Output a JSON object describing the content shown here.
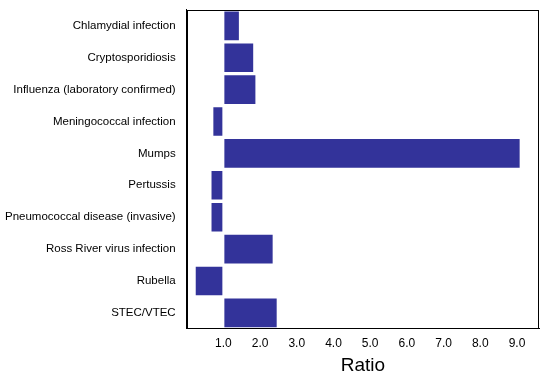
{
  "chart_data": {
    "type": "bar",
    "orientation": "horizontal",
    "x_label": "Ratio",
    "categories": [
      "Chlamydial infection",
      "Cryptosporidiosis",
      "Influenza (laboratory confirmed)",
      "Meningococcal infection",
      "Mumps",
      "Pertussis",
      "Pneumococcal disease (invasive)",
      "Ross River virus infection",
      "Rubella",
      "STEC/VTEC"
    ],
    "values": [
      1.45,
      1.84,
      1.9,
      0.7,
      9.1,
      0.65,
      0.65,
      2.37,
      0.22,
      2.48
    ],
    "baseline": 1,
    "color": "#33339a",
    "xlim": [
      0,
      9.6
    ],
    "xticks": [
      {
        "value": 1,
        "label": "1.0"
      },
      {
        "value": 2,
        "label": "2.0"
      },
      {
        "value": 3,
        "label": "3.0"
      },
      {
        "value": 4,
        "label": "4.0"
      },
      {
        "value": 5,
        "label": "5.0"
      },
      {
        "value": 6,
        "label": "6.0"
      },
      {
        "value": 7,
        "label": "7.0"
      },
      {
        "value": 8,
        "label": "8.0"
      },
      {
        "value": 9,
        "label": "9.0"
      }
    ],
    "grid": false
  }
}
